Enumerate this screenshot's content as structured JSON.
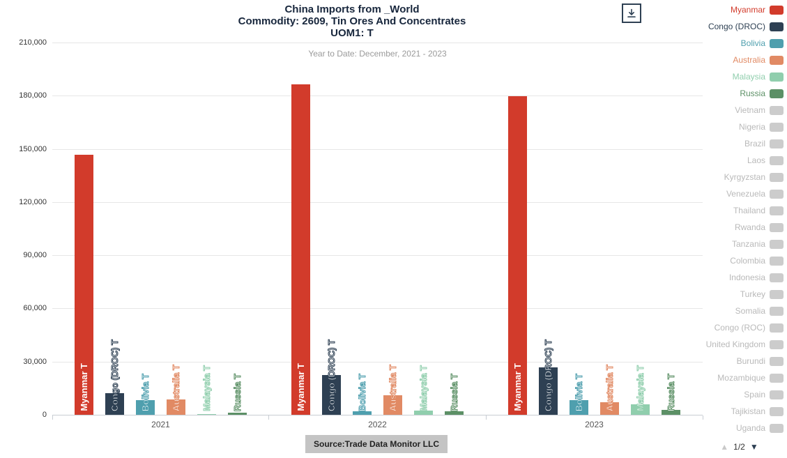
{
  "header": {
    "title_line1": "China Imports from _World",
    "title_line2": "Commodity: 2609, Tin Ores And Concentrates",
    "title_line3": "UOM1: T",
    "subtitle": "Year to Date: December, 2021 - 2023"
  },
  "chart_data": {
    "type": "bar",
    "title": "China Imports from _World — Commodity: 2609, Tin Ores And Concentrates — UOM1: T",
    "subtitle": "Year to Date: December, 2021 - 2023",
    "categories": [
      "2021",
      "2022",
      "2023"
    ],
    "series": [
      {
        "name": "Myanmar",
        "bar_label": "Myanmar T",
        "color": "#d23b2b",
        "values": [
          147000,
          187000,
          180000
        ]
      },
      {
        "name": "Congo (DROC)",
        "bar_label": "Congo (DROC) T",
        "color": "#2e4053",
        "values": [
          12600,
          22800,
          27100
        ]
      },
      {
        "name": "Bolivia",
        "bar_label": "Bolivia T",
        "color": "#4f9fae",
        "values": [
          8700,
          2400,
          8700
        ]
      },
      {
        "name": "Australia",
        "bar_label": "Australia T",
        "color": "#e18a64",
        "values": [
          9000,
          11400,
          7500
        ]
      },
      {
        "name": "Malaysia",
        "bar_label": "Malaysia T",
        "color": "#90cead",
        "values": [
          800,
          2800,
          6300
        ]
      },
      {
        "name": "Russia",
        "bar_label": "Russia T",
        "color": "#5c9066",
        "values": [
          1600,
          2400,
          3100
        ]
      }
    ],
    "ylim": [
      0,
      210000
    ],
    "yticks": {
      "values": [
        0,
        30000,
        60000,
        90000,
        120000,
        150000,
        180000,
        210000
      ],
      "labels": [
        "0",
        "30,000",
        "60,000",
        "90,000",
        "120,000",
        "150,000",
        "180,000",
        "210,000"
      ]
    },
    "grid": true,
    "legend_position": "right"
  },
  "legend": {
    "items": [
      {
        "label": "Myanmar",
        "color": "#d23b2b",
        "active": true
      },
      {
        "label": "Congo (DROC)",
        "color": "#2e4053",
        "active": true
      },
      {
        "label": "Bolivia",
        "color": "#4f9fae",
        "active": true
      },
      {
        "label": "Australia",
        "color": "#e18a64",
        "active": true
      },
      {
        "label": "Malaysia",
        "color": "#90cead",
        "active": true
      },
      {
        "label": "Russia",
        "color": "#5c9066",
        "active": true
      },
      {
        "label": "Vietnam",
        "active": false
      },
      {
        "label": "Nigeria",
        "active": false
      },
      {
        "label": "Brazil",
        "active": false
      },
      {
        "label": "Laos",
        "active": false
      },
      {
        "label": "Kyrgyzstan",
        "active": false
      },
      {
        "label": "Venezuela",
        "active": false
      },
      {
        "label": "Thailand",
        "active": false
      },
      {
        "label": "Rwanda",
        "active": false
      },
      {
        "label": "Tanzania",
        "active": false
      },
      {
        "label": "Colombia",
        "active": false
      },
      {
        "label": "Indonesia",
        "active": false
      },
      {
        "label": "Turkey",
        "active": false
      },
      {
        "label": "Somalia",
        "active": false
      },
      {
        "label": "Congo (ROC)",
        "active": false
      },
      {
        "label": "United Kingdom",
        "active": false
      },
      {
        "label": "Burundi",
        "active": false
      },
      {
        "label": "Mozambique",
        "active": false
      },
      {
        "label": "Spain",
        "active": false
      },
      {
        "label": "Tajikistan",
        "active": false
      },
      {
        "label": "Uganda",
        "active": false
      }
    ],
    "pagination": {
      "page_label": "1/2",
      "up_icon": "▲",
      "down_icon": "▼"
    }
  },
  "footer": {
    "source_label": "Source:Trade Data Monitor LLC"
  },
  "colors": {
    "inactive_swatch": "#cccccc",
    "inactive_text": "#b9b9b9",
    "grid": "#e6e6e6",
    "axis": "#c8cdd3",
    "title_text": "#17263c",
    "subtitle_text": "#9a9a9a"
  }
}
